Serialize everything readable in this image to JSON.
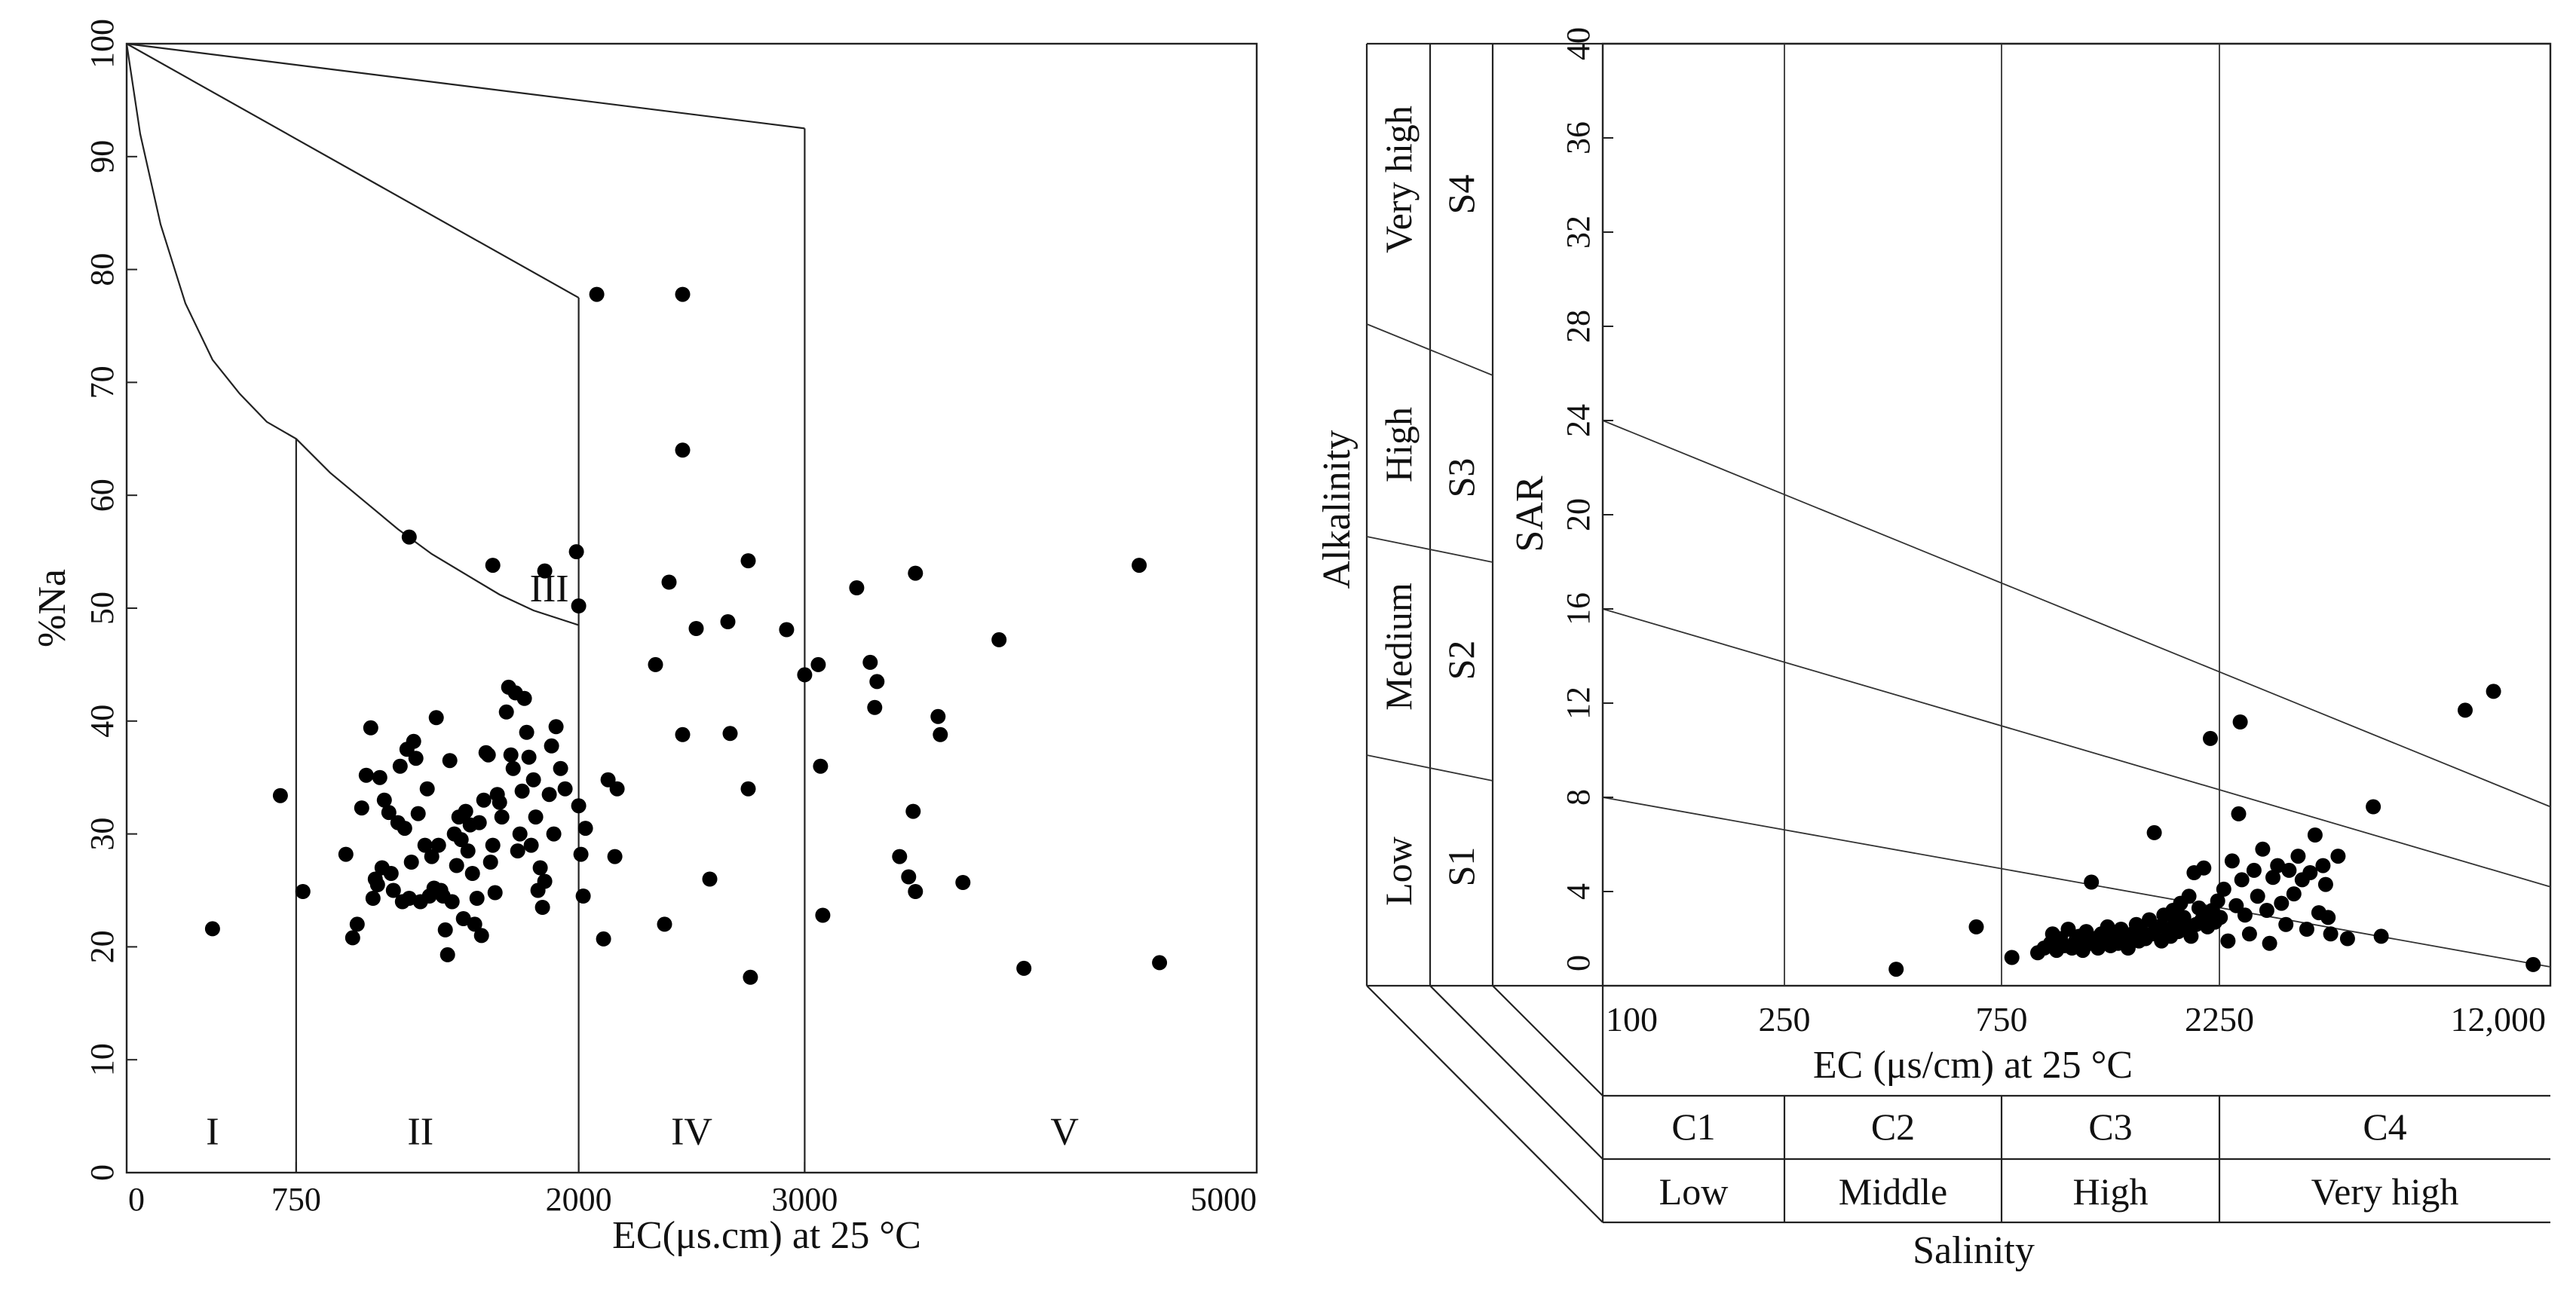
{
  "chart_data": [
    {
      "type": "scatter",
      "title": "",
      "xlabel": "EC(μs.cm) at 25 °C",
      "ylabel": "%Na",
      "xlim": [
        0,
        5000
      ],
      "ylim": [
        0,
        100
      ],
      "x_tick_labels": [
        "0",
        "750",
        "2000",
        "3000",
        "5000"
      ],
      "y_tick_labels": [
        "0",
        "10",
        "20",
        "30",
        "40",
        "50",
        "60",
        "70",
        "80",
        "90",
        "100"
      ],
      "region_labels": [
        "I",
        "II",
        "III",
        "IV",
        "V"
      ],
      "grid": false,
      "points": [
        [
          380,
          21.6
        ],
        [
          680,
          33.4
        ],
        [
          780,
          24.9
        ],
        [
          970,
          28.2
        ],
        [
          1000,
          20.8
        ],
        [
          1020,
          22.0
        ],
        [
          1040,
          32.3
        ],
        [
          1060,
          35.2
        ],
        [
          1080,
          39.4
        ],
        [
          1090,
          24.3
        ],
        [
          1100,
          26.0
        ],
        [
          1110,
          25.5
        ],
        [
          1120,
          35.0
        ],
        [
          1130,
          27.0
        ],
        [
          1140,
          33.0
        ],
        [
          1160,
          31.9
        ],
        [
          1170,
          26.5
        ],
        [
          1180,
          25.0
        ],
        [
          1200,
          31.0
        ],
        [
          1210,
          36.0
        ],
        [
          1220,
          24.0
        ],
        [
          1230,
          30.5
        ],
        [
          1240,
          37.5
        ],
        [
          1250,
          24.3
        ],
        [
          1260,
          27.5
        ],
        [
          1270,
          38.2
        ],
        [
          1280,
          36.7
        ],
        [
          1290,
          31.8
        ],
        [
          1300,
          24.0
        ],
        [
          1320,
          29.0
        ],
        [
          1330,
          34.0
        ],
        [
          1340,
          24.5
        ],
        [
          1350,
          28.0
        ],
        [
          1360,
          25.2
        ],
        [
          1370,
          40.3
        ],
        [
          1380,
          29.0
        ],
        [
          1390,
          25.0
        ],
        [
          1400,
          24.5
        ],
        [
          1410,
          21.5
        ],
        [
          1420,
          19.3
        ],
        [
          1430,
          36.5
        ],
        [
          1440,
          24.0
        ],
        [
          1450,
          30.0
        ],
        [
          1460,
          27.2
        ],
        [
          1470,
          31.5
        ],
        [
          1480,
          29.5
        ],
        [
          1490,
          22.5
        ],
        [
          1500,
          32.0
        ],
        [
          1510,
          28.5
        ],
        [
          1520,
          30.8
        ],
        [
          1530,
          26.5
        ],
        [
          1540,
          22.0
        ],
        [
          1550,
          24.3
        ],
        [
          1560,
          31.0
        ],
        [
          1570,
          21.0
        ],
        [
          1580,
          33.0
        ],
        [
          1590,
          37.2
        ],
        [
          1600,
          37.0
        ],
        [
          1610,
          27.5
        ],
        [
          1620,
          29.0
        ],
        [
          1630,
          24.8
        ],
        [
          1640,
          33.5
        ],
        [
          1650,
          32.8
        ],
        [
          1660,
          31.5
        ],
        [
          1680,
          40.8
        ],
        [
          1690,
          43.0
        ],
        [
          1700,
          37.0
        ],
        [
          1710,
          35.8
        ],
        [
          1720,
          42.5
        ],
        [
          1730,
          28.5
        ],
        [
          1740,
          30.0
        ],
        [
          1750,
          33.8
        ],
        [
          1760,
          42.0
        ],
        [
          1770,
          39.0
        ],
        [
          1780,
          36.8
        ],
        [
          1790,
          29.0
        ],
        [
          1800,
          34.8
        ],
        [
          1810,
          31.5
        ],
        [
          1820,
          25.0
        ],
        [
          1830,
          27.0
        ],
        [
          1840,
          23.5
        ],
        [
          1850,
          25.8
        ],
        [
          1870,
          33.5
        ],
        [
          1880,
          37.8
        ],
        [
          1890,
          30.0
        ],
        [
          1900,
          39.5
        ],
        [
          1920,
          35.8
        ],
        [
          1940,
          34.0
        ],
        [
          2000,
          32.5
        ],
        [
          2010,
          28.2
        ],
        [
          2020,
          24.5
        ],
        [
          2030,
          30.5
        ],
        [
          2080,
          77.8
        ],
        [
          2110,
          20.7
        ],
        [
          2130,
          34.8
        ],
        [
          2170,
          34.0
        ],
        [
          2160,
          28.0
        ],
        [
          1250,
          56.3
        ],
        [
          1620,
          53.8
        ],
        [
          1850,
          53.3
        ],
        [
          1990,
          55.0
        ],
        [
          2000,
          50.2
        ],
        [
          2340,
          45.0
        ],
        [
          2380,
          22.0
        ],
        [
          2400,
          52.3
        ],
        [
          2460,
          77.8
        ],
        [
          2460,
          64.0
        ],
        [
          2460,
          38.8
        ],
        [
          2520,
          48.2
        ],
        [
          2580,
          26.0
        ],
        [
          2660,
          48.8
        ],
        [
          2670,
          38.9
        ],
        [
          2750,
          54.2
        ],
        [
          2750,
          34.0
        ],
        [
          2760,
          17.3
        ],
        [
          2920,
          48.1
        ],
        [
          3000,
          44.1
        ],
        [
          3060,
          45.0
        ],
        [
          3070,
          36.0
        ],
        [
          3080,
          22.8
        ],
        [
          3230,
          51.8
        ],
        [
          3290,
          45.2
        ],
        [
          3310,
          41.2
        ],
        [
          3320,
          43.5
        ],
        [
          3420,
          28.0
        ],
        [
          3460,
          26.2
        ],
        [
          3480,
          32.0
        ],
        [
          3490,
          24.9
        ],
        [
          3490,
          53.1
        ],
        [
          3590,
          40.4
        ],
        [
          3600,
          38.8
        ],
        [
          3700,
          25.7
        ],
        [
          3860,
          47.2
        ],
        [
          3970,
          18.1
        ],
        [
          4480,
          53.8
        ],
        [
          4570,
          18.6
        ]
      ]
    },
    {
      "type": "scatter",
      "title": "",
      "xlabel": "EC (μs/cm) at 25 °C",
      "ylabel": "SAR",
      "ylim": [
        0,
        40
      ],
      "x_scale": "log",
      "xlim": [
        100,
        12000
      ],
      "x_tick_labels": [
        "100",
        "250",
        "750",
        "2250",
        "12,000"
      ],
      "y_tick_labels": [
        "0",
        "4",
        "8",
        "12",
        "16",
        "20",
        "24",
        "28",
        "32",
        "36",
        "40"
      ],
      "left_outer_label": "Alkalinity",
      "bottom_outer_label": "Salinity",
      "alkalinity_classes": [
        {
          "code": "S1",
          "name": "Low"
        },
        {
          "code": "S2",
          "name": "Medium"
        },
        {
          "code": "S3",
          "name": "High"
        },
        {
          "code": "S4",
          "name": "Very high"
        }
      ],
      "salinity_classes": [
        {
          "code": "C1",
          "name": "Low"
        },
        {
          "code": "C2",
          "name": "Middle"
        },
        {
          "code": "C3",
          "name": "High"
        },
        {
          "code": "C4",
          "name": "Very high"
        }
      ],
      "class_boundaries_ec": [
        250,
        750,
        2250
      ],
      "sar_boundary_lines": [
        {
          "from": [
            100,
            8
          ],
          "to": [
            12000,
            0.8
          ]
        },
        {
          "from": [
            100,
            16
          ],
          "to": [
            12000,
            4.2
          ]
        },
        {
          "from": [
            100,
            24
          ],
          "to": [
            12000,
            7.6
          ]
        }
      ],
      "grid": false,
      "points": [
        [
          440,
          0.7
        ],
        [
          660,
          2.5
        ],
        [
          790,
          1.2
        ],
        [
          900,
          1.4
        ],
        [
          930,
          1.6
        ],
        [
          960,
          1.8
        ],
        [
          970,
          2.2
        ],
        [
          990,
          1.5
        ],
        [
          1010,
          2.0
        ],
        [
          1030,
          1.7
        ],
        [
          1050,
          2.4
        ],
        [
          1070,
          1.6
        ],
        [
          1090,
          1.9
        ],
        [
          1110,
          2.1
        ],
        [
          1130,
          1.5
        ],
        [
          1150,
          2.3
        ],
        [
          1170,
          1.8
        ],
        [
          1180,
          4.4
        ],
        [
          1200,
          2.0
        ],
        [
          1220,
          1.6
        ],
        [
          1240,
          2.2
        ],
        [
          1260,
          1.9
        ],
        [
          1280,
          2.5
        ],
        [
          1300,
          1.7
        ],
        [
          1320,
          2.1
        ],
        [
          1350,
          1.8
        ],
        [
          1370,
          2.4
        ],
        [
          1400,
          2.0
        ],
        [
          1420,
          1.6
        ],
        [
          1450,
          2.2
        ],
        [
          1480,
          2.6
        ],
        [
          1500,
          1.9
        ],
        [
          1520,
          2.3
        ],
        [
          1550,
          2.0
        ],
        [
          1580,
          2.8
        ],
        [
          1600,
          2.2
        ],
        [
          1620,
          6.5
        ],
        [
          1650,
          2.5
        ],
        [
          1680,
          1.9
        ],
        [
          1700,
          3.0
        ],
        [
          1730,
          2.4
        ],
        [
          1760,
          2.1
        ],
        [
          1780,
          3.2
        ],
        [
          1800,
          2.7
        ],
        [
          1830,
          2.3
        ],
        [
          1850,
          3.5
        ],
        [
          1880,
          2.9
        ],
        [
          1900,
          2.4
        ],
        [
          1930,
          3.8
        ],
        [
          1950,
          2.1
        ],
        [
          1980,
          4.8
        ],
        [
          2000,
          2.6
        ],
        [
          2030,
          3.3
        ],
        [
          2060,
          2.8
        ],
        [
          2080,
          5.0
        ],
        [
          2100,
          3.0
        ],
        [
          2120,
          2.5
        ],
        [
          2150,
          10.5
        ],
        [
          2170,
          3.2
        ],
        [
          2200,
          2.7
        ],
        [
          2230,
          3.6
        ],
        [
          2260,
          2.9
        ],
        [
          2300,
          4.1
        ],
        [
          2350,
          1.9
        ],
        [
          2400,
          5.3
        ],
        [
          2450,
          3.4
        ],
        [
          2480,
          7.3
        ],
        [
          2500,
          11.2
        ],
        [
          2520,
          4.5
        ],
        [
          2560,
          3.0
        ],
        [
          2620,
          2.2
        ],
        [
          2680,
          4.9
        ],
        [
          2730,
          3.8
        ],
        [
          2800,
          5.8
        ],
        [
          2860,
          3.2
        ],
        [
          2900,
          1.8
        ],
        [
          2950,
          4.6
        ],
        [
          3020,
          5.1
        ],
        [
          3080,
          3.5
        ],
        [
          3150,
          2.6
        ],
        [
          3200,
          4.9
        ],
        [
          3280,
          3.9
        ],
        [
          3350,
          5.5
        ],
        [
          3420,
          4.5
        ],
        [
          3500,
          2.4
        ],
        [
          3560,
          4.8
        ],
        [
          3650,
          6.4
        ],
        [
          3720,
          3.1
        ],
        [
          3800,
          5.1
        ],
        [
          3850,
          4.3
        ],
        [
          3900,
          2.9
        ],
        [
          3950,
          2.2
        ],
        [
          4100,
          5.5
        ],
        [
          4300,
          2.0
        ],
        [
          4900,
          7.6
        ],
        [
          5100,
          2.1
        ],
        [
          7800,
          11.7
        ],
        [
          9000,
          12.5
        ],
        [
          11000,
          0.9
        ]
      ]
    }
  ]
}
